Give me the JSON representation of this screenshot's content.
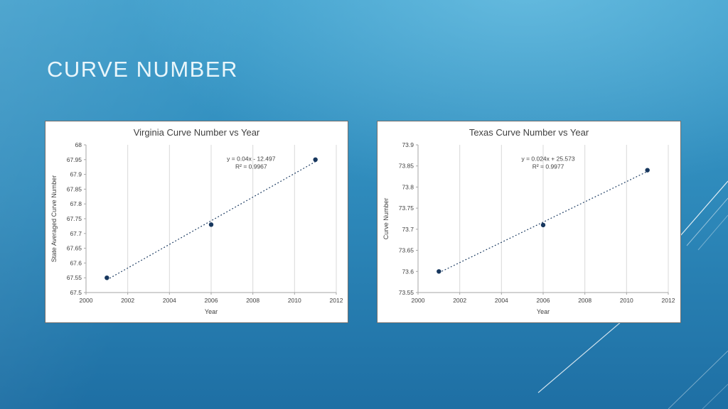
{
  "slide": {
    "title": "CURVE NUMBER",
    "background_colors": {
      "top": "#3C9CCA",
      "bottom": "#1E6FA4"
    },
    "title_color": "#F0FAFD"
  },
  "chart_data": [
    {
      "type": "scatter",
      "title": "Virginia Curve Number vs Year",
      "xlabel": "Year",
      "ylabel": "State Averaged Curve Number",
      "xlim": [
        2000,
        2012
      ],
      "ylim": [
        67.5,
        68
      ],
      "xticks": [
        2000,
        2002,
        2004,
        2006,
        2008,
        2010,
        2012
      ],
      "ytick_labels": [
        "67.5",
        "67.55",
        "67.6",
        "67.65",
        "67.7",
        "67.75",
        "67.8",
        "67.85",
        "67.9",
        "67.95",
        "68"
      ],
      "points": [
        [
          2001,
          67.55
        ],
        [
          2006,
          67.73
        ],
        [
          2011,
          67.95
        ]
      ],
      "trendline": {
        "slope": 0.04,
        "intercept": -12.497,
        "x1": 2001,
        "x2": 2011,
        "style": "dotted",
        "equation": "y = 0.04x - 12.497",
        "r_squared": "R² = 0.9967",
        "label_fx": 0.66,
        "label_fy": 0.07
      },
      "grid": "vertical",
      "legend": "none",
      "colors": {
        "marker": "#17375E",
        "trend": "#17375E",
        "grid": "#D9D9D9",
        "axis": "#A6A6A6",
        "text": "#404040"
      }
    },
    {
      "type": "scatter",
      "title": "Texas Curve Number vs Year",
      "xlabel": "Year",
      "ylabel": "Curve Number",
      "xlim": [
        2000,
        2012
      ],
      "ylim": [
        73.55,
        73.9
      ],
      "xticks": [
        2000,
        2002,
        2004,
        2006,
        2008,
        2010,
        2012
      ],
      "ytick_labels": [
        "73.55",
        "73.6",
        "73.65",
        "73.7",
        "73.75",
        "73.8",
        "73.85",
        "73.9"
      ],
      "points": [
        [
          2001,
          73.6
        ],
        [
          2006,
          73.71
        ],
        [
          2011,
          73.84
        ]
      ],
      "trendline": {
        "slope": 0.024,
        "intercept": 25.573,
        "x1": 2001,
        "x2": 2011,
        "style": "dotted",
        "equation": "y = 0.024x + 25.573",
        "r_squared": "R² = 0.9977",
        "label_fx": 0.52,
        "label_fy": 0.07
      },
      "grid": "vertical",
      "legend": "none",
      "colors": {
        "marker": "#17375E",
        "trend": "#17375E",
        "grid": "#D9D9D9",
        "axis": "#A6A6A6",
        "text": "#404040"
      }
    }
  ]
}
